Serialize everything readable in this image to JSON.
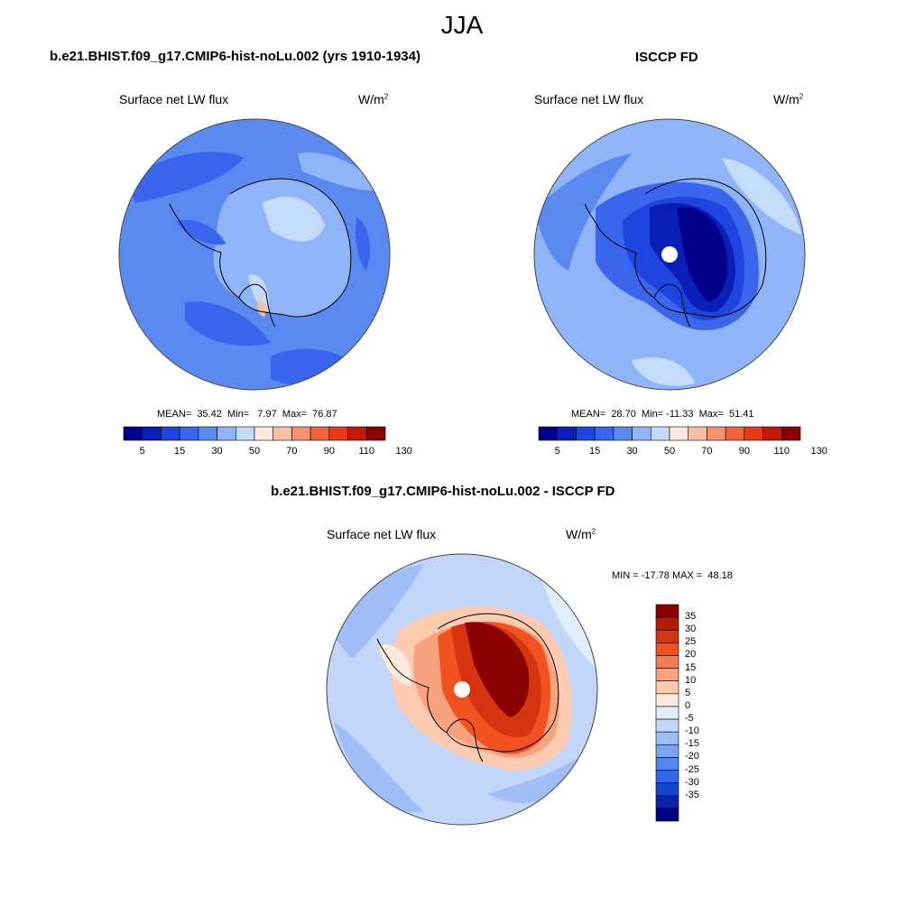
{
  "page": {
    "title": "JJA"
  },
  "panels": [
    {
      "id": "model",
      "title": "b.e21.BHIST.f09_g17.CMIP6-hist-noLu.002 (yrs 1910-1934)",
      "variable": "Surface net LW flux",
      "units_base": "W/m",
      "units_exp": "2",
      "stats": "MEAN=  35.42  Min=   7.97  Max=  76.87",
      "colorbar_labels": [
        "5",
        "15",
        "30",
        "50",
        "70",
        "90",
        "110",
        "130"
      ]
    },
    {
      "id": "obs",
      "title": "ISCCP FD",
      "variable": "Surface net LW flux",
      "units_base": "W/m",
      "units_exp": "2",
      "stats": "MEAN=  28.70  Min= -11.33  Max=  51.41",
      "colorbar_labels": [
        "5",
        "15",
        "30",
        "50",
        "70",
        "90",
        "110",
        "130"
      ]
    },
    {
      "id": "diff",
      "title": "b.e21.BHIST.f09_g17.CMIP6-hist-noLu.002 - ISCCP FD",
      "variable": "Surface net LW flux",
      "units_base": "W/m",
      "units_exp": "2",
      "stats": "MIN = -17.78 MAX =  48.18",
      "colorbar_labels": [
        "35",
        "30",
        "25",
        "20",
        "15",
        "10",
        "5",
        "0",
        "-5",
        "-10",
        "-15",
        "-20",
        "-25",
        "-30",
        "-35"
      ]
    }
  ],
  "colors": {
    "abs_scale": [
      "#00008b",
      "#0a1fb8",
      "#1f45e0",
      "#3a66ee",
      "#5a8af0",
      "#8fb4f7",
      "#c5dbfb",
      "#ffe8dc",
      "#fbbfa6",
      "#f6926f",
      "#f2643c",
      "#e83b18",
      "#c21a06",
      "#8b0000"
    ],
    "diff_scale": [
      "#8b0000",
      "#b51c06",
      "#d63410",
      "#f25220",
      "#f57c4e",
      "#f9a37e",
      "#fccbb0",
      "#fdeadd",
      "#e3eefc",
      "#c2d6fa",
      "#9fbdf6",
      "#7ba3f2",
      "#5585ee",
      "#3066e8",
      "#1444cc",
      "#0a22a8",
      "#000080"
    ]
  }
}
